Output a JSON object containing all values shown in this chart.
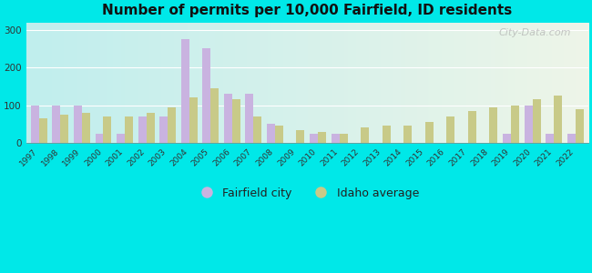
{
  "years": [
    1997,
    1998,
    1999,
    2000,
    2001,
    2002,
    2003,
    2004,
    2005,
    2006,
    2007,
    2008,
    2009,
    2010,
    2011,
    2012,
    2013,
    2014,
    2015,
    2016,
    2017,
    2018,
    2019,
    2020,
    2021,
    2022
  ],
  "fairfield": [
    100,
    100,
    100,
    25,
    25,
    70,
    70,
    275,
    250,
    130,
    130,
    50,
    0,
    25,
    25,
    0,
    0,
    0,
    0,
    0,
    0,
    0,
    25,
    100,
    25,
    25
  ],
  "idaho": [
    65,
    75,
    80,
    70,
    70,
    80,
    95,
    120,
    145,
    115,
    70,
    45,
    35,
    30,
    25,
    40,
    45,
    45,
    55,
    70,
    85,
    95,
    100,
    115,
    125,
    90
  ],
  "title": "Number of permits per 10,000 Fairfield, ID residents",
  "fairfield_color": "#c9b3e0",
  "idaho_color": "#c8ca88",
  "background_color_outer": "#00e8e8",
  "ylim": [
    0,
    320
  ],
  "yticks": [
    0,
    100,
    200,
    300
  ],
  "legend_labels": [
    "Fairfield city",
    "Idaho average"
  ],
  "watermark": "City-Data.com"
}
